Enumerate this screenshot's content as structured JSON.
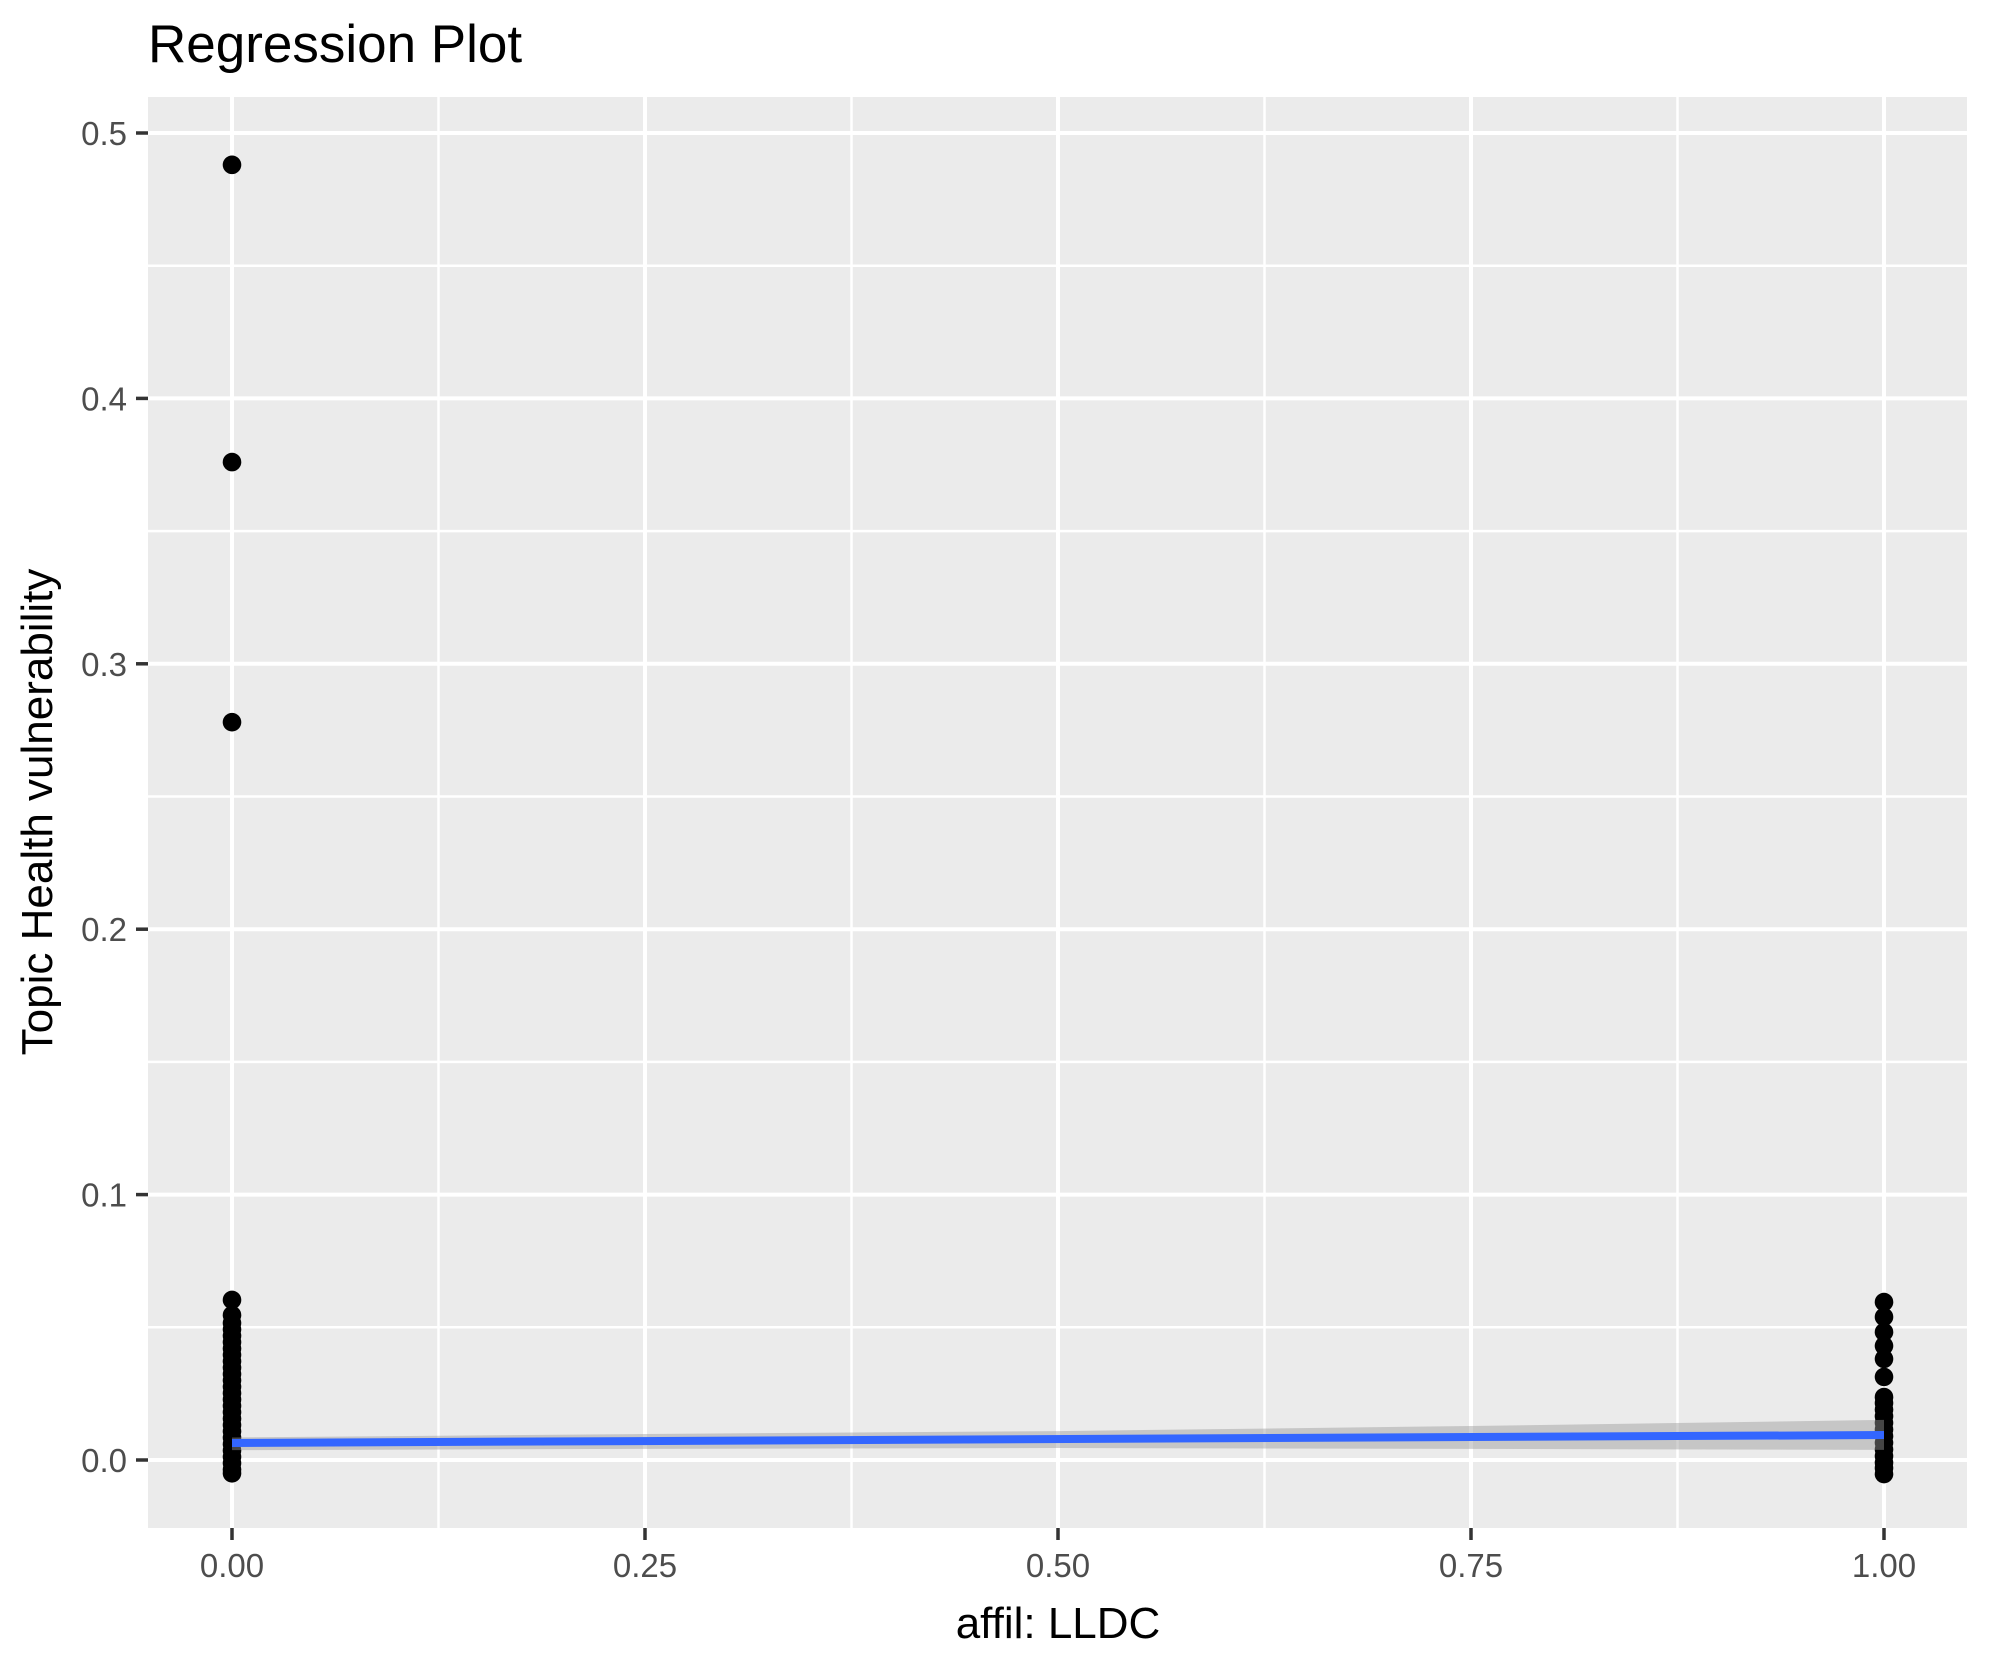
{
  "chart_data": {
    "type": "scatter",
    "title": "Regression Plot",
    "xlabel": "affil: LLDC",
    "ylabel": "Topic Health vulnerability",
    "x_ticks": {
      "labels": [
        "0.00",
        "0.25",
        "0.50",
        "0.75",
        "1.00"
      ],
      "values": [
        0.0,
        0.25,
        0.5,
        0.75,
        1.0
      ]
    },
    "y_ticks": {
      "labels": [
        "0.0",
        "0.1",
        "0.2",
        "0.3",
        "0.4",
        "0.5"
      ],
      "values": [
        0.0,
        0.1,
        0.2,
        0.3,
        0.4,
        0.5
      ]
    },
    "x_minor": [
      0.125,
      0.375,
      0.625,
      0.875
    ],
    "y_minor": [
      0.05,
      0.15,
      0.25,
      0.35,
      0.45
    ],
    "xlim": [
      -0.051,
      1.051
    ],
    "ylim": [
      -0.0256,
      0.5128
    ],
    "grid": "white major/minor gridlines on gray panel, legend none",
    "points": {
      "x0_outliers": {
        "x": 0,
        "y": [
          0.488,
          0.376,
          0.278
        ]
      },
      "x0_cluster": {
        "x": 0,
        "y": [
          0.0603,
          0.0546,
          0.0516,
          0.0492,
          0.0468,
          0.0444,
          0.042,
          0.0396,
          0.0372,
          0.0348,
          0.0324,
          0.03,
          0.0276,
          0.0252,
          0.0228,
          0.0204,
          0.018,
          0.0156,
          0.0132,
          0.0108,
          0.0084,
          0.006,
          0.0036,
          0.0012,
          -0.0012,
          -0.0036,
          -0.005
        ]
      },
      "x1_cluster_upper": {
        "x": 1,
        "y": [
          0.0595,
          0.0539,
          0.0482,
          0.043,
          0.0381,
          0.0313
        ]
      },
      "x1_cluster_dense": {
        "x": 1,
        "y": [
          0.0237,
          0.0215,
          0.019,
          0.0165,
          0.014,
          0.0115,
          0.009,
          0.0065,
          0.004,
          0.0015,
          -0.001,
          -0.003,
          -0.0053
        ]
      }
    },
    "regression": {
      "line": {
        "x": [
          0,
          1
        ],
        "y": [
          0.0064,
          0.0094
        ]
      },
      "ci_band": {
        "x": [
          0,
          0.25,
          0.5,
          0.75,
          1.0
        ],
        "upper": [
          0.0085,
          0.0098,
          0.0109,
          0.0128,
          0.0151
        ],
        "lower": [
          0.0037,
          0.0042,
          0.0045,
          0.0042,
          0.0038
        ]
      }
    },
    "colors": {
      "panel_background": "#EBEBEB",
      "gridline": "#FFFFFF",
      "point": "#000000",
      "regression_line": "#3366FF",
      "ci_band": "#999999",
      "axis_text": "#4D4D4D",
      "tick_mark": "#333333",
      "title_text": "#000000"
    }
  }
}
